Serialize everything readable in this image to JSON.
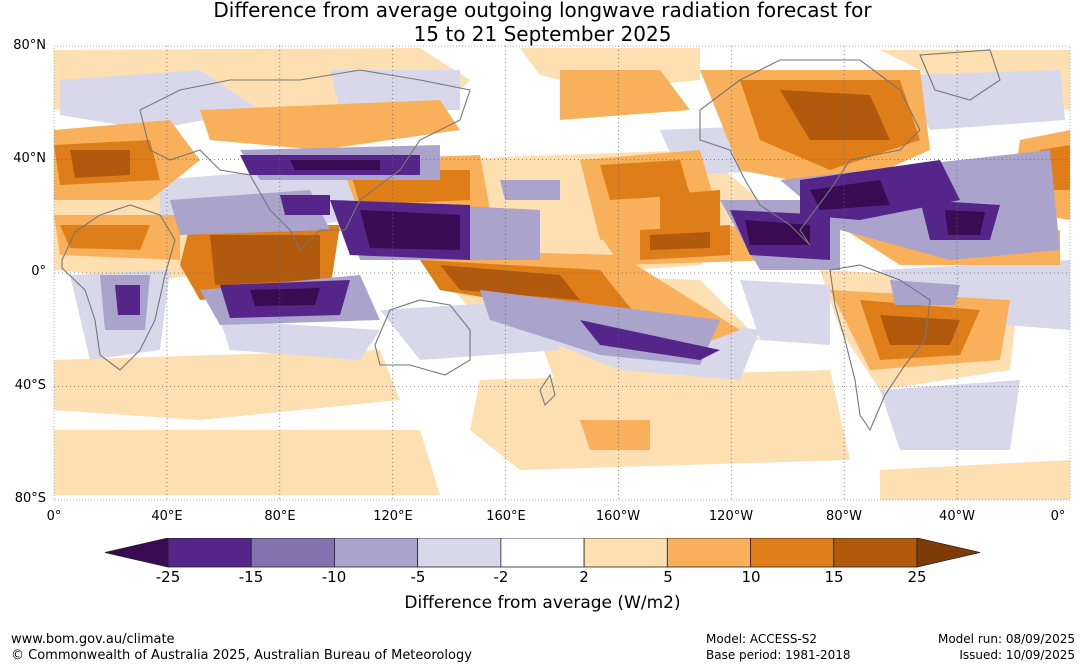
{
  "title_line1": "Difference from average outgoing longwave radiation forecast for",
  "title_line2": "15 to 21 September 2025",
  "lat_labels": [
    "80°N",
    "40°N",
    "0°",
    "40°S",
    "80°S"
  ],
  "lon_labels": [
    "0°",
    "40°E",
    "80°E",
    "120°E",
    "160°E",
    "160°W",
    "120°W",
    "80°W",
    "40°W",
    "0°"
  ],
  "colorbar": {
    "ticks": [
      "-25",
      "-15",
      "-10",
      "-5",
      "-2",
      "2",
      "5",
      "10",
      "15",
      "25"
    ],
    "colors": [
      "#3a0a52",
      "#55258a",
      "#8372ae",
      "#aaa3cc",
      "#d8d8ea",
      "#ffffff",
      "#fddfb2",
      "#f8b05a",
      "#df7d18",
      "#b15a0e",
      "#7e3b08"
    ],
    "title": "Difference from average (W/m2)"
  },
  "footer": {
    "website": "www.bom.gov.au/climate",
    "copyright": "© Commonwealth of Australia 2025, Australian Bureau of Meteorology",
    "model": "Model: ACCESS-S2",
    "base_period": "Base period: 1981-2018",
    "model_run": "Model run: 08/09/2025",
    "issued": "Issued: 10/09/2025"
  }
}
